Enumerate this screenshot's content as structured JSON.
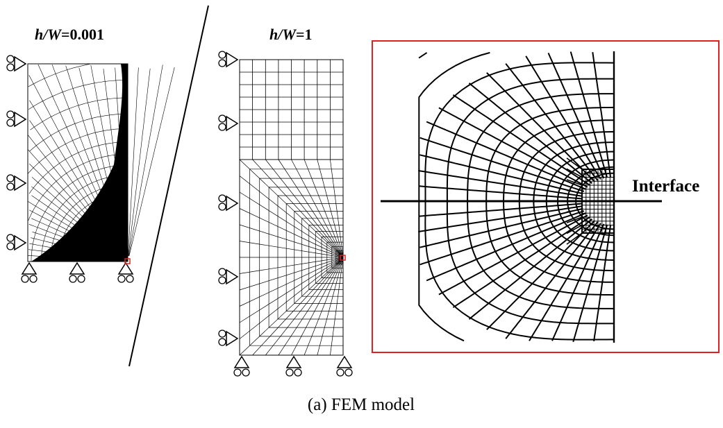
{
  "panel_left": {
    "title": "h/W=0.001",
    "title_h": "h",
    "title_w": "W",
    "title_val": "=0.001"
  },
  "panel_middle": {
    "title": "h/W=1",
    "title_h": "h",
    "title_w": "W",
    "title_val": "=1"
  },
  "inset": {
    "interface_label": "Interface",
    "frame_color": "#e02020"
  },
  "caption": "(a)  FEM model",
  "colors": {
    "mesh": "#000000",
    "highlight": "#e02020",
    "background": "#ffffff"
  }
}
